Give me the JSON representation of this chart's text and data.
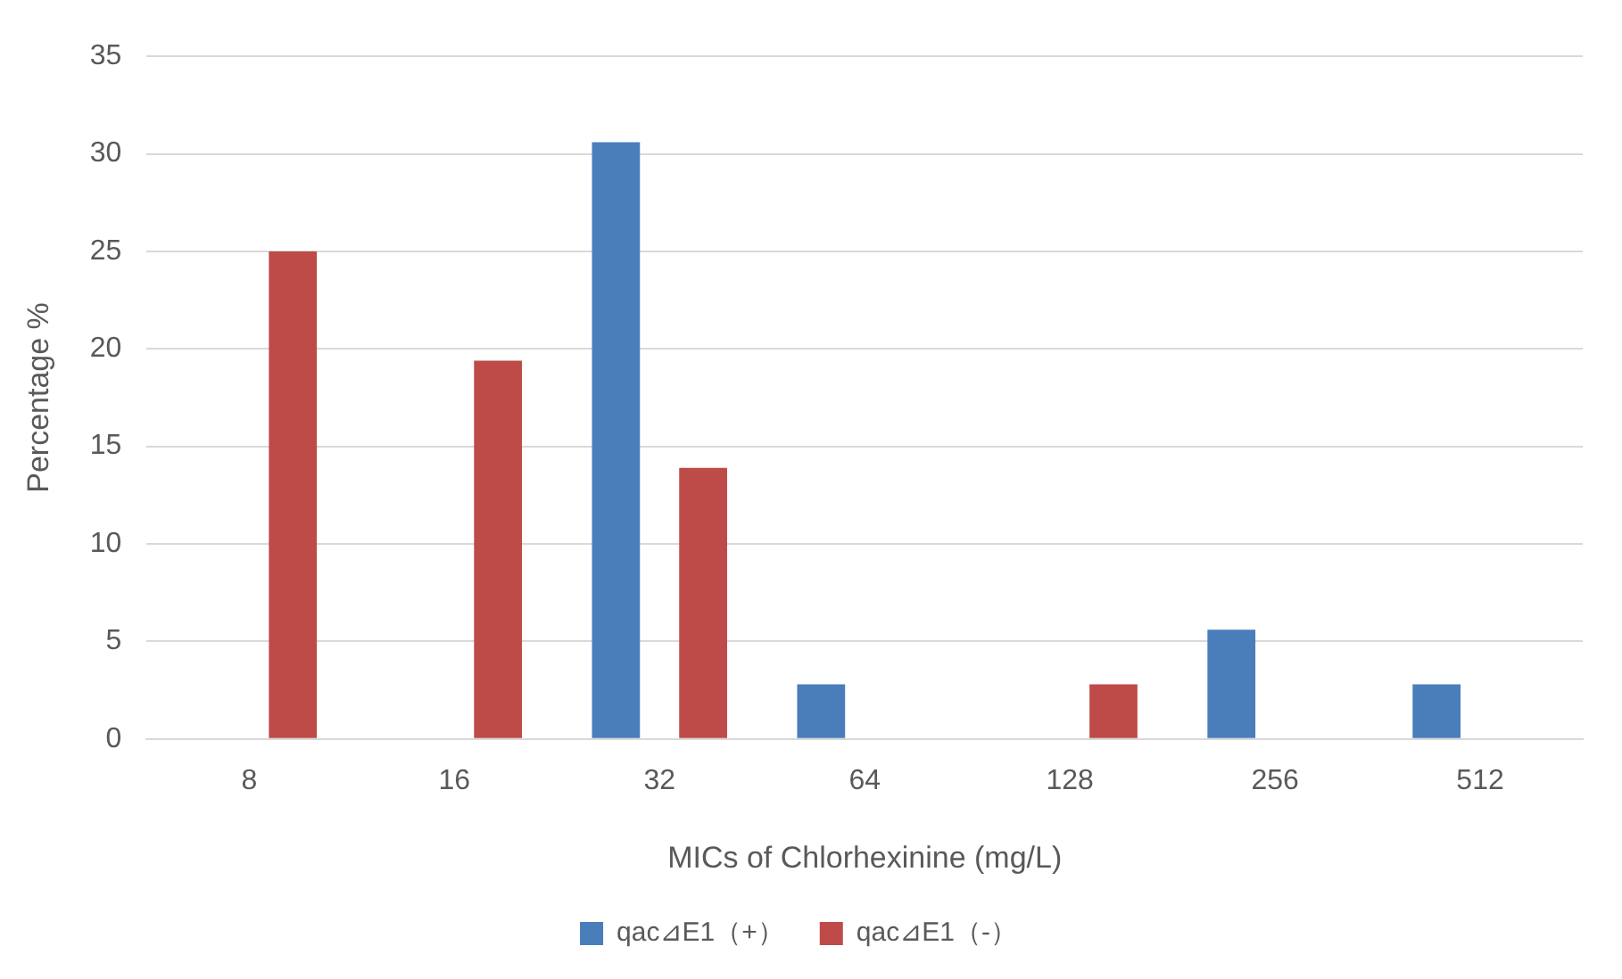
{
  "chart_data": {
    "type": "bar",
    "xlabel": "MICs of Chlorhexinine (mg/L)",
    "ylabel": "Percentage %",
    "categories": [
      "8",
      "16",
      "32",
      "64",
      "128",
      "256",
      "512"
    ],
    "series": [
      {
        "name": "qac⊿E1（+）",
        "color": "#4a7ebb",
        "values": [
          0,
          0,
          30.6,
          2.8,
          0,
          5.6,
          2.8
        ]
      },
      {
        "name": "qac⊿E1（-）",
        "color": "#be4b48",
        "values": [
          25,
          19.4,
          13.9,
          0,
          2.8,
          0,
          0
        ]
      }
    ],
    "ylim": [
      0,
      35
    ],
    "yticks": [
      0,
      5,
      10,
      15,
      20,
      25,
      30,
      35
    ],
    "grid": "y",
    "legend": "bottom"
  }
}
